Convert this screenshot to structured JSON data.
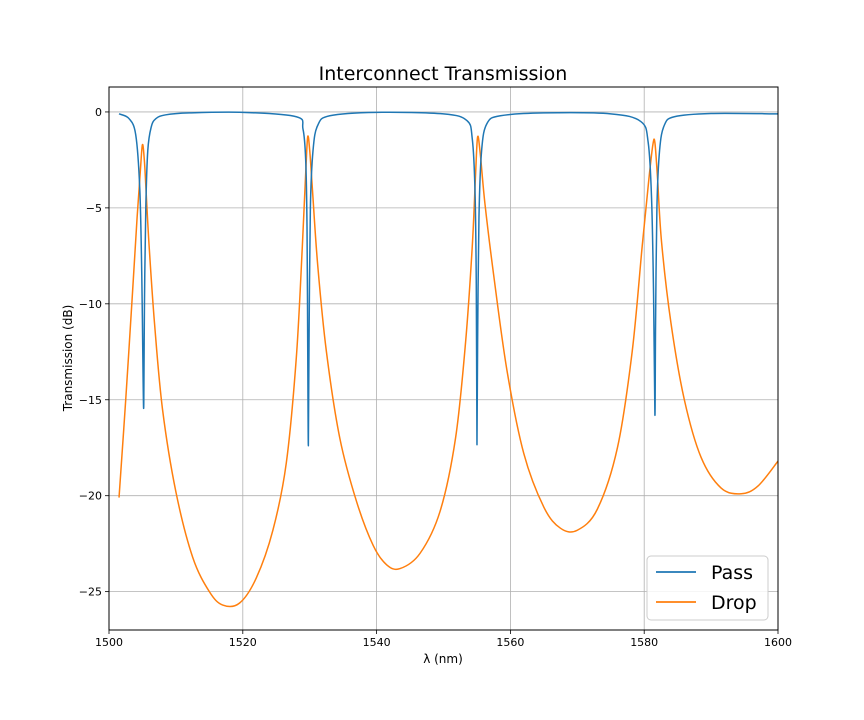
{
  "chart_data": {
    "type": "line",
    "title": "Interconnect Transmission",
    "xlabel": "λ (nm)",
    "ylabel": "Transmission (dB)",
    "xlim": [
      1500,
      1600
    ],
    "ylim": [
      -27,
      1.3
    ],
    "xticks": [
      1500,
      1520,
      1540,
      1560,
      1580,
      1600
    ],
    "yticks": [
      0,
      -5,
      -10,
      -15,
      -20,
      -25
    ],
    "xtick_labels": [
      "1500",
      "1520",
      "1540",
      "1560",
      "1580",
      "1600"
    ],
    "ytick_labels": [
      "0",
      "−5",
      "−10",
      "−15",
      "−20",
      "−25"
    ],
    "grid": true,
    "legend_position": "lower-right",
    "colors": {
      "pass": "#1f77b4",
      "drop": "#ff7f0e"
    },
    "series": [
      {
        "name": "Pass",
        "x": [
          1501.5,
          1503.0,
          1504.0,
          1504.6,
          1504.9,
          1505.1,
          1505.2,
          1505.3,
          1505.5,
          1505.8,
          1506.3,
          1507.0,
          1508.5,
          1512.0,
          1520.0,
          1528.0,
          1529.0,
          1529.4,
          1529.6,
          1529.7,
          1529.8,
          1529.9,
          1530.1,
          1530.5,
          1531.2,
          1533.0,
          1540.0,
          1550.0,
          1553.5,
          1554.3,
          1554.7,
          1554.9,
          1555.0,
          1555.1,
          1555.3,
          1555.7,
          1556.5,
          1558.5,
          1565.0,
          1575.0,
          1579.5,
          1580.6,
          1581.1,
          1581.4,
          1581.6,
          1581.7,
          1581.9,
          1582.3,
          1583.0,
          1584.5,
          1590.0,
          1600.0
        ],
        "y": [
          -0.1,
          -0.35,
          -1.2,
          -4.0,
          -8.5,
          -14.0,
          -15.2,
          -10.0,
          -5.0,
          -2.0,
          -0.8,
          -0.35,
          -0.15,
          -0.05,
          -0.02,
          -0.25,
          -0.9,
          -2.5,
          -6.0,
          -12.0,
          -17.4,
          -12.0,
          -5.0,
          -2.0,
          -0.7,
          -0.2,
          -0.02,
          -0.1,
          -0.45,
          -1.4,
          -4.0,
          -9.0,
          -17.3,
          -12.0,
          -5.5,
          -2.0,
          -0.6,
          -0.2,
          -0.05,
          -0.1,
          -0.5,
          -1.6,
          -4.5,
          -9.5,
          -15.8,
          -11.0,
          -5.0,
          -2.0,
          -0.7,
          -0.25,
          -0.08,
          -0.1
        ]
      },
      {
        "name": "Drop",
        "x": [
          1501.5,
          1502.5,
          1503.5,
          1504.2,
          1504.7,
          1505.0,
          1505.3,
          1505.6,
          1506.0,
          1506.8,
          1508.0,
          1510.0,
          1512.5,
          1515.0,
          1517.0,
          1519.5,
          1522.0,
          1524.5,
          1526.5,
          1528.0,
          1528.9,
          1529.4,
          1529.7,
          1530.0,
          1530.4,
          1531.2,
          1532.5,
          1534.5,
          1537.0,
          1539.5,
          1541.5,
          1543.5,
          1546.5,
          1549.5,
          1551.8,
          1553.3,
          1554.3,
          1554.8,
          1555.1,
          1555.5,
          1556.2,
          1557.5,
          1559.5,
          1562.0,
          1565.0,
          1567.5,
          1570.0,
          1573.0,
          1576.0,
          1578.2,
          1579.7,
          1580.7,
          1581.3,
          1581.6,
          1582.0,
          1582.6,
          1584.0,
          1586.0,
          1588.5,
          1591.5,
          1594.5,
          1597.0,
          1600.0
        ],
        "y": [
          -20.1,
          -15.0,
          -9.5,
          -5.5,
          -3.0,
          -1.7,
          -2.6,
          -4.5,
          -7.0,
          -11.0,
          -15.5,
          -19.8,
          -23.2,
          -25.0,
          -25.7,
          -25.6,
          -24.3,
          -21.8,
          -18.3,
          -12.8,
          -7.0,
          -3.2,
          -1.3,
          -2.0,
          -4.0,
          -8.0,
          -12.5,
          -17.0,
          -20.3,
          -22.6,
          -23.6,
          -23.8,
          -23.0,
          -20.8,
          -17.0,
          -12.0,
          -7.0,
          -3.2,
          -1.3,
          -2.2,
          -4.8,
          -8.5,
          -13.5,
          -17.8,
          -20.6,
          -21.7,
          -21.8,
          -20.7,
          -17.5,
          -12.5,
          -7.0,
          -3.5,
          -1.7,
          -1.6,
          -3.5,
          -6.8,
          -11.0,
          -15.0,
          -18.0,
          -19.6,
          -19.9,
          -19.5,
          -18.2
        ]
      }
    ]
  }
}
